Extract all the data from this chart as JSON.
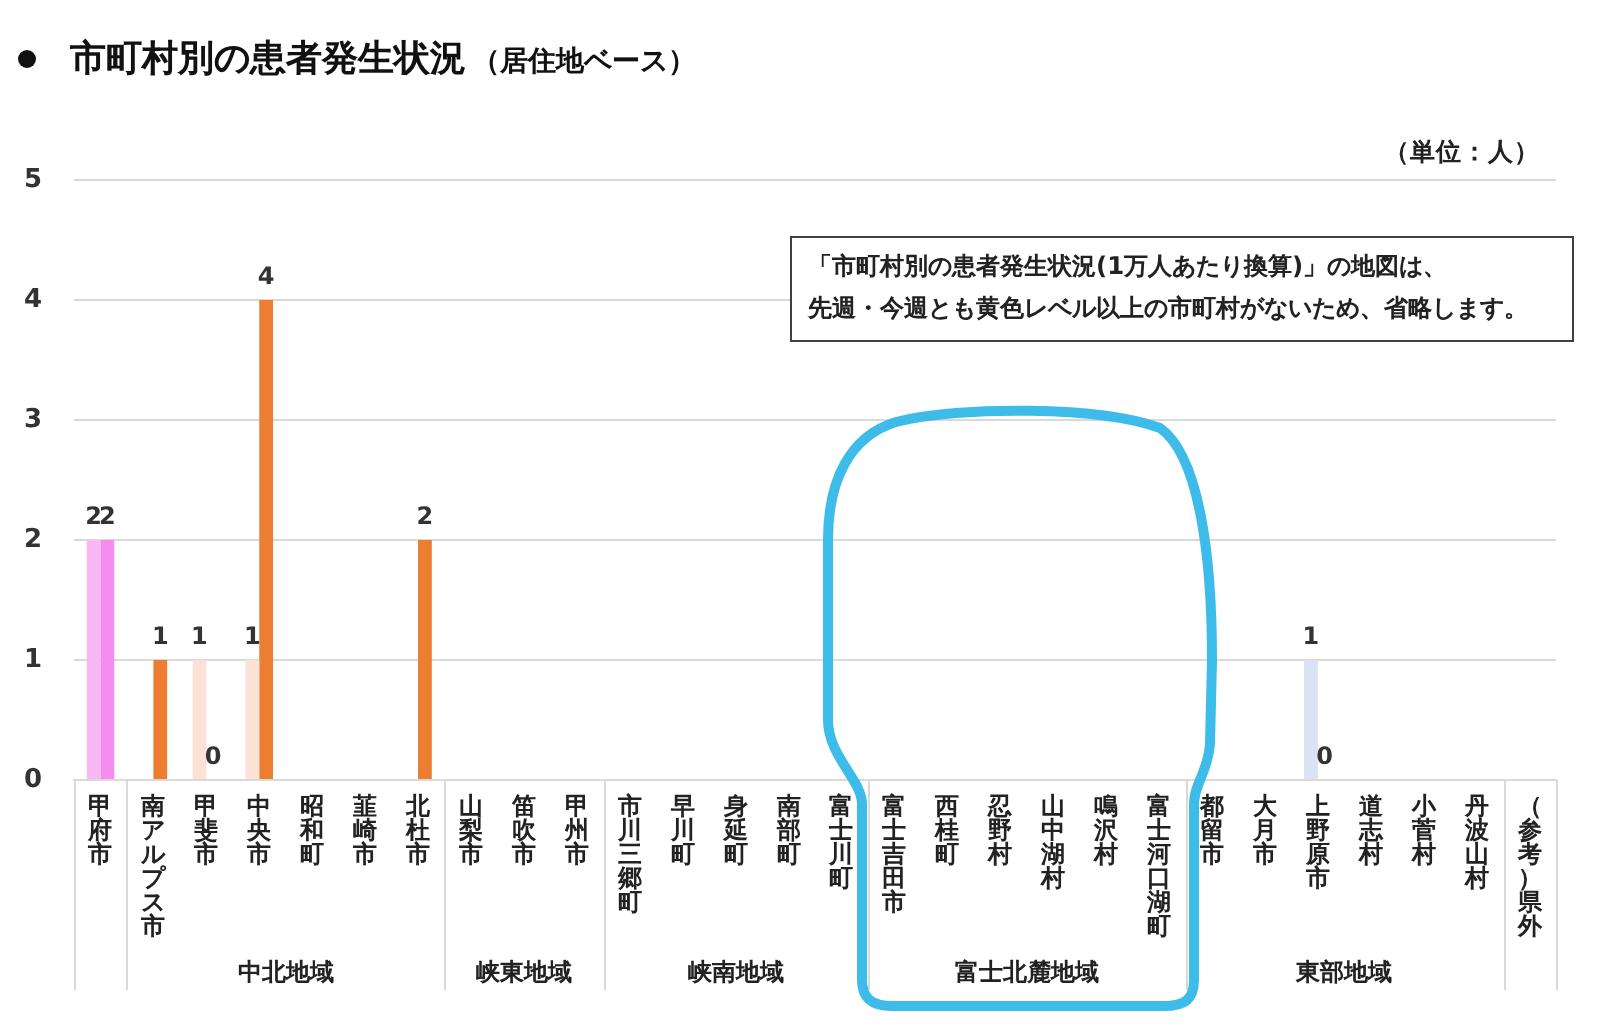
{
  "chart_data": {
    "type": "bar",
    "title": "市町村別の患者発生状況",
    "subtitle": "（居住地ベース）",
    "categories": [
      "甲府市",
      "南アルプス市",
      "甲斐市",
      "中央市",
      "昭和町",
      "韮崎市",
      "北杜市",
      "山梨市",
      "笛吹市",
      "甲州市",
      "市川三郷町",
      "早川町",
      "身延町",
      "南部町",
      "富士川町",
      "富士吉田市",
      "西桂町",
      "忍野村",
      "山中湖村",
      "鳴沢村",
      "富士河口湖町",
      "都留市",
      "大月市",
      "上野原市",
      "道志村",
      "小菅村",
      "丹波山村",
      "（参考）県外"
    ],
    "series": [
      {
        "values": [
          2,
          null,
          1,
          1,
          null,
          null,
          null,
          null,
          null,
          null,
          null,
          null,
          null,
          null,
          null,
          null,
          null,
          null,
          null,
          null,
          null,
          null,
          null,
          1,
          null,
          null,
          null,
          null
        ],
        "colors": [
          "#f9b8f4",
          null,
          "#fbe2d5",
          "#fbe2d5",
          null,
          null,
          null,
          null,
          null,
          null,
          null,
          null,
          null,
          null,
          null,
          null,
          null,
          null,
          null,
          null,
          null,
          null,
          null,
          "#dae3f3",
          null,
          null,
          null,
          null
        ]
      },
      {
        "values": [
          2,
          1,
          0,
          4,
          null,
          null,
          2,
          null,
          null,
          null,
          null,
          null,
          null,
          null,
          null,
          null,
          null,
          null,
          null,
          null,
          null,
          null,
          null,
          0,
          null,
          null,
          null,
          null
        ],
        "colors": [
          "#f68bf0",
          "#ed7d31",
          null,
          "#ed7d31",
          null,
          null,
          "#ed7d31",
          null,
          null,
          null,
          null,
          null,
          null,
          null,
          null,
          null,
          null,
          null,
          null,
          null,
          null,
          null,
          null,
          null,
          null,
          null,
          null,
          null
        ]
      }
    ],
    "ylim": [
      0,
      5
    ],
    "yticks": [
      0,
      1,
      2,
      3,
      4,
      5
    ],
    "grid": "y",
    "legend": false,
    "data_labels": true,
    "annotations": [
      "（単位：人）",
      "「市町村別の患者発生状況(1万人あたり換算)」の地図は、",
      "先週・今週とも黄色レベル以上の市町村がないため、省略します。",
      "中北地域",
      "峡東地域",
      "峡南地域",
      "富士北麓地域",
      "東部地域"
    ]
  }
}
